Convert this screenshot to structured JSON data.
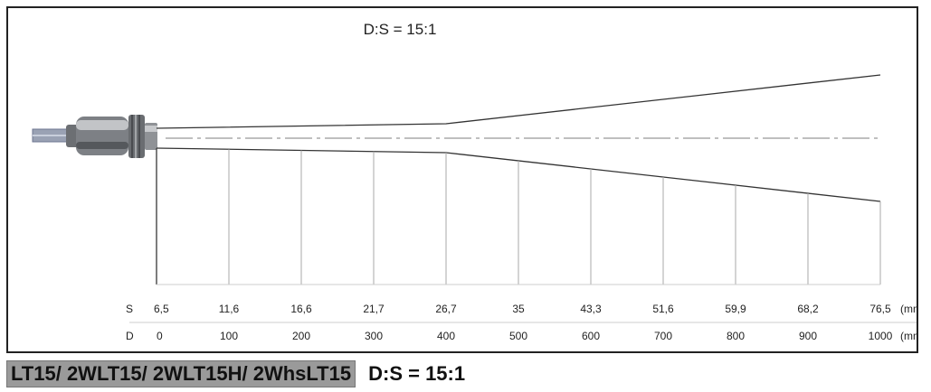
{
  "title": "D:S = 15:1",
  "row_labels": {
    "s": "S",
    "d": "D"
  },
  "spot_unit": "(mm)",
  "distance_unit": "(mm)",
  "chart_data": {
    "type": "table",
    "distance_mm": [
      "0",
      "100",
      "200",
      "300",
      "400",
      "500",
      "600",
      "700",
      "800",
      "900",
      "1000"
    ],
    "spot_size_mm": [
      "6,5",
      "11,6",
      "16,6",
      "21,7",
      "26,7",
      "35",
      "43,3",
      "51,6",
      "59,9",
      "68,2",
      "76,5"
    ],
    "focus_distance_mm": 400
  },
  "caption": {
    "model": "LT15/ 2WLT15/ 2WLT15H/ 2WhsLT15",
    "ratio": "D:S = 15:1"
  },
  "colors": {
    "frame": "#222222",
    "lines": "#333333",
    "guide": "#999999",
    "caption_bg": "#9a9a9a"
  }
}
